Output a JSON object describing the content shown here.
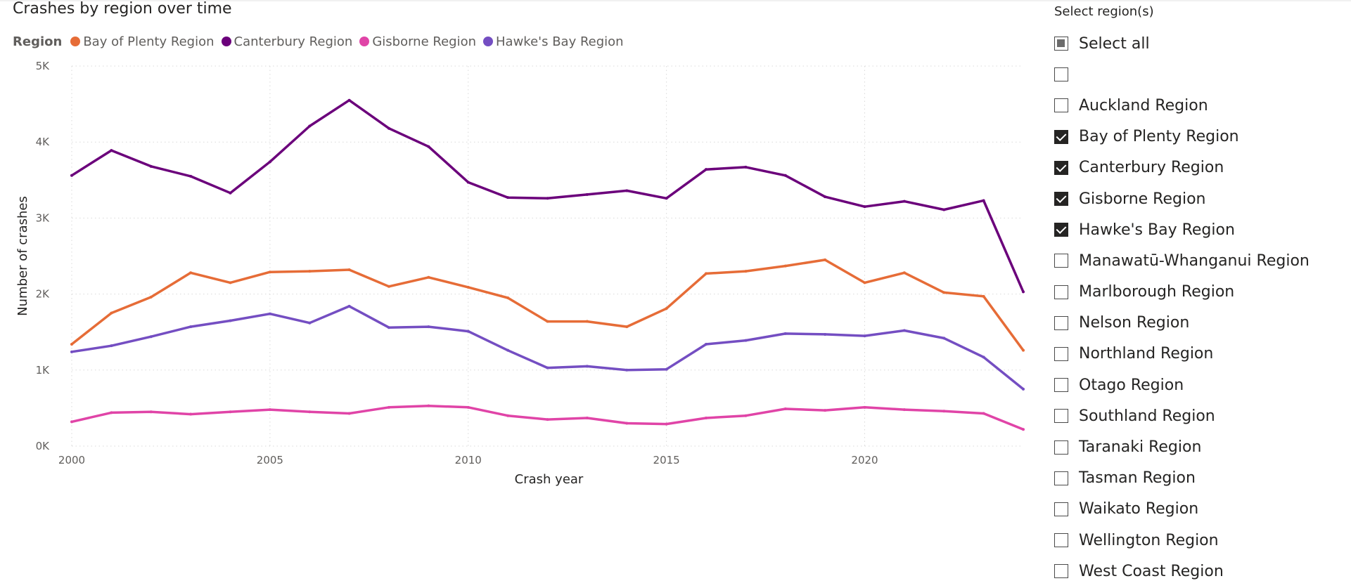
{
  "chart": {
    "title": "Crashes by region over time",
    "legend_title": "Region"
  },
  "chart_data": {
    "type": "line",
    "title": "Crashes by region over time",
    "xlabel": "Crash year",
    "ylabel": "Number of crashes",
    "x": [
      2000,
      2001,
      2002,
      2003,
      2004,
      2005,
      2006,
      2007,
      2008,
      2009,
      2010,
      2011,
      2012,
      2013,
      2014,
      2015,
      2016,
      2017,
      2018,
      2019,
      2020,
      2021,
      2022,
      2023,
      2024
    ],
    "x_ticks": [
      2000,
      2005,
      2010,
      2015,
      2020
    ],
    "x_tick_labels": [
      "2000",
      "2005",
      "2010",
      "2015",
      "2020"
    ],
    "xlim": [
      2000,
      2024
    ],
    "ylim": [
      0,
      5000
    ],
    "y_ticks": [
      0,
      1000,
      2000,
      3000,
      4000,
      5000
    ],
    "y_tick_labels": [
      "0K",
      "1K",
      "2K",
      "3K",
      "4K",
      "5K"
    ],
    "grid": true,
    "legend_position": "top-left",
    "series": [
      {
        "name": "Bay of Plenty Region",
        "color": "#e66c37",
        "values": [
          1340,
          1750,
          1960,
          2280,
          2150,
          2290,
          2300,
          2320,
          2100,
          2220,
          2090,
          1950,
          1640,
          1640,
          1570,
          1810,
          2270,
          2300,
          2370,
          2450,
          2150,
          2280,
          2020,
          1970,
          1260
        ]
      },
      {
        "name": "Canterbury Region",
        "color": "#6b007b",
        "values": [
          3560,
          3890,
          3680,
          3550,
          3330,
          3740,
          4210,
          4550,
          4180,
          3940,
          3470,
          3270,
          3260,
          3310,
          3360,
          3260,
          3640,
          3670,
          3560,
          3280,
          3150,
          3220,
          3110,
          3230,
          2030
        ]
      },
      {
        "name": "Gisborne Region",
        "color": "#e044a7",
        "values": [
          320,
          440,
          450,
          420,
          450,
          480,
          450,
          430,
          510,
          530,
          510,
          400,
          350,
          370,
          300,
          290,
          370,
          400,
          490,
          470,
          510,
          480,
          460,
          430,
          220
        ]
      },
      {
        "name": "Hawke's Bay Region",
        "color": "#744ec2",
        "values": [
          1240,
          1320,
          1440,
          1570,
          1650,
          1740,
          1620,
          1840,
          1560,
          1570,
          1510,
          1260,
          1030,
          1050,
          1000,
          1010,
          1340,
          1390,
          1480,
          1470,
          1450,
          1520,
          1420,
          1170,
          750
        ]
      }
    ]
  },
  "slicer": {
    "title": "Select region(s)",
    "items": [
      {
        "label": "Select all",
        "state": "partial"
      },
      {
        "label": "",
        "state": "unchecked"
      },
      {
        "label": "Auckland Region",
        "state": "unchecked"
      },
      {
        "label": "Bay of Plenty Region",
        "state": "checked"
      },
      {
        "label": "Canterbury Region",
        "state": "checked"
      },
      {
        "label": "Gisborne Region",
        "state": "checked"
      },
      {
        "label": "Hawke's Bay Region",
        "state": "checked"
      },
      {
        "label": "Manawatū-Whanganui Region",
        "state": "unchecked"
      },
      {
        "label": "Marlborough Region",
        "state": "unchecked"
      },
      {
        "label": "Nelson Region",
        "state": "unchecked"
      },
      {
        "label": "Northland Region",
        "state": "unchecked"
      },
      {
        "label": "Otago Region",
        "state": "unchecked"
      },
      {
        "label": "Southland Region",
        "state": "unchecked"
      },
      {
        "label": "Taranaki Region",
        "state": "unchecked"
      },
      {
        "label": "Tasman Region",
        "state": "unchecked"
      },
      {
        "label": "Waikato Region",
        "state": "unchecked"
      },
      {
        "label": "Wellington Region",
        "state": "unchecked"
      },
      {
        "label": "West Coast Region",
        "state": "unchecked"
      }
    ]
  },
  "colors": {
    "text": "#252423",
    "muted_text": "#605e5c",
    "gridline": "#d9d9d9",
    "checkbox_checked": "#252423"
  }
}
